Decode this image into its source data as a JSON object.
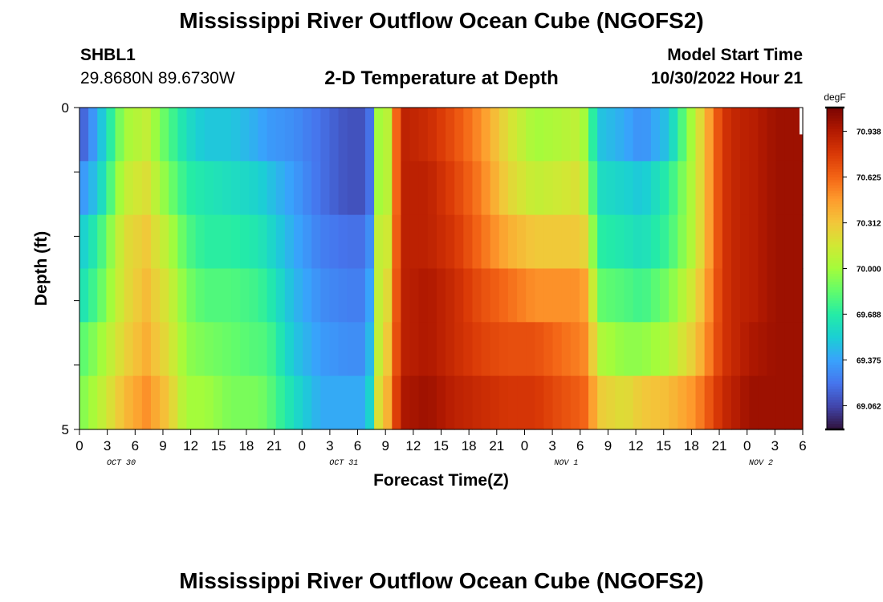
{
  "header": {
    "title": "Mississippi River Outflow Ocean Cube (NGOFS2)",
    "station_id": "SHBL1",
    "coords": "29.8680N  89.6730W",
    "subtitle": "2-D Temperature at Depth",
    "model_start_label": "Model Start Time",
    "model_start_value": "10/30/2022 Hour 21"
  },
  "footer": {
    "title": "Mississippi River Outflow Ocean Cube (NGOFS2)"
  },
  "chart_data": {
    "type": "heatmap",
    "xlabel": "Forecast Time(Z)",
    "ylabel": "Depth (ft)",
    "x_tick_labels": [
      "0",
      "3",
      "6",
      "9",
      "12",
      "15",
      "18",
      "21",
      "0",
      "3",
      "6",
      "9",
      "12",
      "15",
      "18",
      "21",
      "0",
      "3",
      "6",
      "9",
      "12",
      "15",
      "18",
      "21",
      "0",
      "3",
      "6"
    ],
    "day_labels": [
      "OCT 30",
      "OCT 31",
      "NOV 1",
      "NOV 2"
    ],
    "day_label_tick_index": [
      1.5,
      9.5,
      17.5,
      24.5
    ],
    "y_tick_labels": [
      "0",
      "5"
    ],
    "depth_range_ft": [
      0,
      5
    ],
    "colorbar": {
      "unit": "degF",
      "ticks": [
        "70.938",
        "70.625",
        "70.312",
        "70.000",
        "69.688",
        "69.375",
        "69.062"
      ],
      "vmin": 68.9,
      "vmax": 71.1,
      "colors": [
        "#30123b",
        "#4145ab",
        "#4675ed",
        "#39a2fc",
        "#1bcfd4",
        "#24eca6",
        "#61fc6c",
        "#a4fc3b",
        "#d1e834",
        "#f3c63a",
        "#fe9b2d",
        "#f36315",
        "#d93806",
        "#b11901",
        "#7a0402"
      ]
    },
    "time_knots": [
      0,
      2,
      5,
      7.5,
      10,
      12,
      14,
      17,
      20,
      21,
      24,
      27,
      30,
      32,
      33,
      33.5,
      34,
      36,
      39,
      42,
      45,
      48,
      51,
      54,
      56,
      57,
      58,
      61,
      63,
      66,
      69,
      72,
      74,
      75,
      78,
      81
    ],
    "depth_rows": [
      [
        69.1,
        69.4,
        70.0,
        70.1,
        69.8,
        69.6,
        69.5,
        69.5,
        69.4,
        69.35,
        69.3,
        69.2,
        69.1,
        69.1,
        69.3,
        70.0,
        69.8,
        70.9,
        70.85,
        70.7,
        70.5,
        70.2,
        70.0,
        70.05,
        70.1,
        69.9,
        69.5,
        69.4,
        69.3,
        69.5,
        70.1,
        70.8,
        70.9,
        70.9,
        71.0,
        71.0
      ],
      [
        69.3,
        69.5,
        70.1,
        70.2,
        69.9,
        69.7,
        69.65,
        69.6,
        69.55,
        69.5,
        69.35,
        69.2,
        69.1,
        69.1,
        69.3,
        70.0,
        69.8,
        70.9,
        70.9,
        70.75,
        70.55,
        70.25,
        70.1,
        70.15,
        70.2,
        70.0,
        69.6,
        69.55,
        69.5,
        69.7,
        70.1,
        70.8,
        70.9,
        70.9,
        71.0,
        71.0
      ],
      [
        69.5,
        69.7,
        70.2,
        70.3,
        70.05,
        69.8,
        69.7,
        69.7,
        69.65,
        69.6,
        69.4,
        69.25,
        69.2,
        69.2,
        69.4,
        70.1,
        69.9,
        70.9,
        70.9,
        70.8,
        70.6,
        70.4,
        70.3,
        70.3,
        70.3,
        70.2,
        69.7,
        69.65,
        69.6,
        69.75,
        70.1,
        70.8,
        70.9,
        70.9,
        71.0,
        71.0
      ],
      [
        69.6,
        69.8,
        70.2,
        70.35,
        70.15,
        69.9,
        69.8,
        69.8,
        69.75,
        69.7,
        69.45,
        69.3,
        69.25,
        69.25,
        69.5,
        70.1,
        70.0,
        70.9,
        70.95,
        70.85,
        70.7,
        70.6,
        70.5,
        70.5,
        70.5,
        70.4,
        69.85,
        69.8,
        69.75,
        69.9,
        70.2,
        70.8,
        70.9,
        70.9,
        71.0,
        71.0
      ],
      [
        69.8,
        69.95,
        70.25,
        70.4,
        70.2,
        69.95,
        69.9,
        69.85,
        69.8,
        69.8,
        69.5,
        69.35,
        69.3,
        69.3,
        69.6,
        70.1,
        70.1,
        70.9,
        70.95,
        70.85,
        70.75,
        70.7,
        70.7,
        70.6,
        70.55,
        70.5,
        70.05,
        69.95,
        69.95,
        70.05,
        70.3,
        70.8,
        70.9,
        70.95,
        71.0,
        71.0
      ],
      [
        69.9,
        70.05,
        70.35,
        70.5,
        70.3,
        70.0,
        70.0,
        69.9,
        69.9,
        69.85,
        69.6,
        69.4,
        69.4,
        69.4,
        69.7,
        70.2,
        70.2,
        70.95,
        71.0,
        70.9,
        70.85,
        70.8,
        70.8,
        70.7,
        70.65,
        70.6,
        70.3,
        70.2,
        70.3,
        70.35,
        70.5,
        70.85,
        70.95,
        71.0,
        71.0,
        71.0
      ]
    ]
  }
}
